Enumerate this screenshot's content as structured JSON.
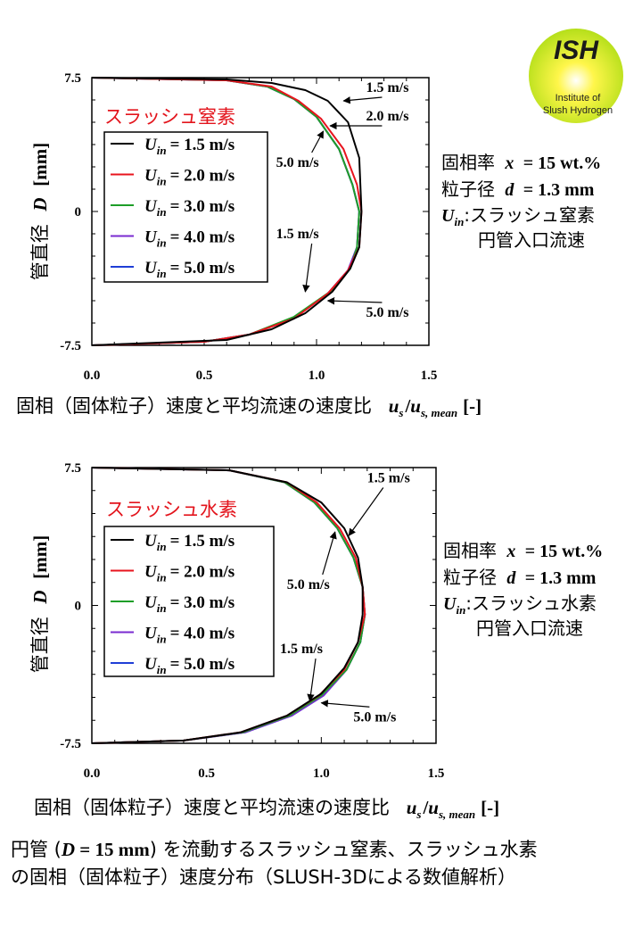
{
  "logo": {
    "title": "ISH",
    "subtitle_line1": "Institute of",
    "subtitle_line2": "Slush Hydrogen",
    "colors": {
      "outer": "#b8e21c",
      "inner": "#fff23a",
      "rim": "#d7e85a"
    }
  },
  "colors": {
    "series_1": "#000000",
    "series_2": "#e8141e",
    "series_3": "#1e9e28",
    "series_4": "#7a2bd0",
    "series_5": "#1f3ed6",
    "legend_title": "#e3141c"
  },
  "chart_data": [
    {
      "type": "line",
      "legend_title": "スラッシュ窒素",
      "xlim": [
        0.0,
        1.5
      ],
      "ylim": [
        -7.5,
        7.5
      ],
      "x_ticks": [
        "0.0",
        "0.5",
        "1.0",
        "1.5"
      ],
      "y_ticks": [
        "7.5",
        "0",
        "-7.5"
      ],
      "ylabel_jp": "管直径",
      "ylabel_sym": "D",
      "ylabel_unit": "[mm]",
      "xlabel_jp": "固相（固体粒子）速度と平均流速の速度比",
      "xlabel_sym_u": "u",
      "xlabel_sym_s": "s",
      "xlabel_slash": "/",
      "xlabel_sym_sub2": "s, mean",
      "xlabel_unit": "[-]",
      "legend_var": "U",
      "legend_sub": "in",
      "series": [
        {
          "name": "1.5 m/s",
          "label": "= 1.5 m/s",
          "points": [
            [
              0.0,
              7.5
            ],
            [
              0.6,
              7.4
            ],
            [
              0.8,
              7.2
            ],
            [
              0.95,
              6.8
            ],
            [
              1.05,
              6.2
            ],
            [
              1.14,
              5.0
            ],
            [
              1.19,
              3.0
            ],
            [
              1.2,
              0.0
            ],
            [
              1.19,
              -2.0
            ],
            [
              1.15,
              -3.2
            ],
            [
              1.07,
              -4.5
            ],
            [
              0.95,
              -5.7
            ],
            [
              0.8,
              -6.6
            ],
            [
              0.6,
              -7.2
            ],
            [
              0.0,
              -7.5
            ]
          ]
        },
        {
          "name": "2.0 m/s",
          "label": "= 2.0 m/s",
          "points": [
            [
              0.0,
              7.5
            ],
            [
              0.6,
              7.35
            ],
            [
              0.8,
              7.0
            ],
            [
              0.92,
              6.2
            ],
            [
              1.02,
              5.2
            ],
            [
              1.12,
              3.5
            ],
            [
              1.18,
              1.5
            ],
            [
              1.2,
              0.0
            ],
            [
              1.19,
              -2.0
            ],
            [
              1.14,
              -3.3
            ],
            [
              1.05,
              -4.6
            ],
            [
              0.9,
              -6.0
            ],
            [
              0.7,
              -6.9
            ],
            [
              0.5,
              -7.3
            ],
            [
              0.0,
              -7.5
            ]
          ]
        },
        {
          "name": "3.0 m/s",
          "label": "= 3.0 m/s",
          "points": [
            [
              0.0,
              7.5
            ],
            [
              0.6,
              7.35
            ],
            [
              0.78,
              7.0
            ],
            [
              0.9,
              6.3
            ],
            [
              1.0,
              5.3
            ],
            [
              1.1,
              3.5
            ],
            [
              1.16,
              1.5
            ],
            [
              1.19,
              0.0
            ],
            [
              1.18,
              -2.0
            ],
            [
              1.15,
              -3.2
            ],
            [
              1.06,
              -4.5
            ],
            [
              0.9,
              -5.9
            ],
            [
              0.7,
              -6.9
            ],
            [
              0.5,
              -7.3
            ],
            [
              0.0,
              -7.5
            ]
          ]
        },
        {
          "name": "4.0 m/s",
          "label": "= 4.0 m/s",
          "points": [
            [
              0.0,
              7.5
            ],
            [
              0.6,
              7.35
            ],
            [
              0.78,
              7.0
            ],
            [
              0.9,
              6.3
            ],
            [
              1.0,
              5.3
            ],
            [
              1.1,
              3.5
            ],
            [
              1.16,
              1.5
            ],
            [
              1.19,
              0.0
            ],
            [
              1.18,
              -2.0
            ],
            [
              1.14,
              -3.3
            ],
            [
              1.05,
              -4.6
            ],
            [
              0.9,
              -5.95
            ],
            [
              0.7,
              -6.9
            ],
            [
              0.5,
              -7.3
            ],
            [
              0.0,
              -7.5
            ]
          ]
        },
        {
          "name": "5.0 m/s",
          "label": "= 5.0 m/s",
          "points": [
            [
              0.0,
              7.5
            ],
            [
              0.6,
              7.35
            ],
            [
              0.78,
              7.0
            ],
            [
              0.9,
              6.3
            ],
            [
              1.0,
              5.3
            ],
            [
              1.1,
              3.5
            ],
            [
              1.16,
              1.5
            ],
            [
              1.19,
              0.0
            ],
            [
              1.18,
              -2.0
            ],
            [
              1.14,
              -3.3
            ],
            [
              1.05,
              -4.6
            ],
            [
              0.9,
              -5.95
            ],
            [
              0.7,
              -6.9
            ],
            [
              0.5,
              -7.3
            ],
            [
              0.0,
              -7.5
            ]
          ]
        }
      ],
      "annotations": [
        {
          "text": "1.5 m/s",
          "at": [
            1.12,
            6.2
          ],
          "label_pos": [
            1.22,
            6.7
          ]
        },
        {
          "text": "2.0 m/s",
          "at": [
            1.06,
            4.8
          ],
          "label_pos": [
            1.22,
            5.1
          ]
        },
        {
          "text": "5.0 m/s",
          "at": [
            1.03,
            4.5
          ],
          "label_pos": [
            0.82,
            2.5
          ]
        },
        {
          "text": "1.5 m/s",
          "at": [
            0.95,
            -4.5
          ],
          "label_pos": [
            0.82,
            -1.5
          ]
        },
        {
          "text": "5.0 m/s",
          "at": [
            1.05,
            -5.0
          ],
          "label_pos": [
            1.22,
            -5.9
          ]
        }
      ],
      "side_note": {
        "line1_jp": "固相率",
        "line1_sym": "x",
        "line1_val": "= 15 wt.%",
        "line2_jp": "粒子径",
        "line2_sym": "d",
        "line2_val": "= 1.3 mm",
        "line3_sym": "U",
        "line3_sub": "in",
        "line3_jp": ":スラッシュ窒素",
        "line4_jp": "円管入口流速"
      }
    },
    {
      "type": "line",
      "legend_title": "スラッシュ水素",
      "xlim": [
        0.0,
        1.5
      ],
      "ylim": [
        -7.5,
        7.5
      ],
      "x_ticks": [
        "0.0",
        "0.5",
        "1.0",
        "1.5"
      ],
      "y_ticks": [
        "7.5",
        "0",
        "-7.5"
      ],
      "ylabel_jp": "管直径",
      "ylabel_sym": "D",
      "ylabel_unit": "[mm]",
      "xlabel_jp": "固相（固体粒子）速度と平均流速の速度比",
      "xlabel_sym_u": "u",
      "xlabel_sym_s": "s",
      "xlabel_slash": "/",
      "xlabel_sym_sub2": "s, mean",
      "xlabel_unit": "[-]",
      "legend_var": "U",
      "legend_sub": "in",
      "series": [
        {
          "name": "1.5 m/s",
          "label": "= 1.5 m/s",
          "points": [
            [
              0.0,
              7.5
            ],
            [
              0.6,
              7.35
            ],
            [
              0.85,
              6.7
            ],
            [
              1.0,
              5.6
            ],
            [
              1.1,
              4.2
            ],
            [
              1.16,
              2.6
            ],
            [
              1.18,
              1.0
            ],
            [
              1.18,
              -0.5
            ],
            [
              1.16,
              -2.0
            ],
            [
              1.1,
              -3.4
            ],
            [
              1.0,
              -4.8
            ],
            [
              0.85,
              -6.0
            ],
            [
              0.65,
              -6.9
            ],
            [
              0.4,
              -7.35
            ],
            [
              0.0,
              -7.5
            ]
          ]
        },
        {
          "name": "2.0 m/s",
          "label": "= 2.0 m/s",
          "points": [
            [
              0.0,
              7.5
            ],
            [
              0.6,
              7.35
            ],
            [
              0.85,
              6.7
            ],
            [
              0.98,
              5.6
            ],
            [
              1.08,
              4.2
            ],
            [
              1.15,
              2.6
            ],
            [
              1.18,
              1.0
            ],
            [
              1.19,
              -0.5
            ],
            [
              1.16,
              -2.0
            ],
            [
              1.1,
              -3.5
            ],
            [
              0.99,
              -4.9
            ],
            [
              0.85,
              -6.0
            ],
            [
              0.65,
              -6.9
            ],
            [
              0.4,
              -7.35
            ],
            [
              0.0,
              -7.5
            ]
          ]
        },
        {
          "name": "3.0 m/s",
          "label": "= 3.0 m/s",
          "points": [
            [
              0.0,
              7.5
            ],
            [
              0.6,
              7.35
            ],
            [
              0.84,
              6.7
            ],
            [
              0.97,
              5.6
            ],
            [
              1.07,
              4.2
            ],
            [
              1.14,
              2.6
            ],
            [
              1.18,
              1.0
            ],
            [
              1.19,
              -0.5
            ],
            [
              1.17,
              -2.0
            ],
            [
              1.11,
              -3.5
            ],
            [
              1.0,
              -4.9
            ],
            [
              0.86,
              -6.0
            ],
            [
              0.66,
              -6.9
            ],
            [
              0.4,
              -7.35
            ],
            [
              0.0,
              -7.5
            ]
          ]
        },
        {
          "name": "4.0 m/s",
          "label": "= 4.0 m/s",
          "points": [
            [
              0.0,
              7.5
            ],
            [
              0.6,
              7.35
            ],
            [
              0.84,
              6.7
            ],
            [
              0.97,
              5.6
            ],
            [
              1.07,
              4.2
            ],
            [
              1.14,
              2.6
            ],
            [
              1.18,
              1.0
            ],
            [
              1.19,
              -0.5
            ],
            [
              1.17,
              -2.0
            ],
            [
              1.11,
              -3.5
            ],
            [
              1.01,
              -4.9
            ],
            [
              0.87,
              -6.0
            ],
            [
              0.67,
              -6.9
            ],
            [
              0.4,
              -7.35
            ],
            [
              0.0,
              -7.5
            ]
          ]
        },
        {
          "name": "5.0 m/s",
          "label": "= 5.0 m/s",
          "points": [
            [
              0.0,
              7.5
            ],
            [
              0.6,
              7.35
            ],
            [
              0.84,
              6.7
            ],
            [
              0.97,
              5.6
            ],
            [
              1.07,
              4.2
            ],
            [
              1.14,
              2.6
            ],
            [
              1.18,
              1.0
            ],
            [
              1.19,
              -0.5
            ],
            [
              1.17,
              -2.0
            ],
            [
              1.11,
              -3.5
            ],
            [
              1.01,
              -4.9
            ],
            [
              0.87,
              -6.0
            ],
            [
              0.67,
              -6.9
            ],
            [
              0.4,
              -7.35
            ],
            [
              0.0,
              -7.5
            ]
          ]
        }
      ],
      "annotations": [
        {
          "text": "1.5 m/s",
          "at": [
            1.12,
            3.8
          ],
          "label_pos": [
            1.2,
            6.7
          ]
        },
        {
          "text": "5.0 m/s",
          "at": [
            1.06,
            4.0
          ],
          "label_pos": [
            0.85,
            0.9
          ]
        },
        {
          "text": "1.5 m/s",
          "at": [
            0.95,
            -5.2
          ],
          "label_pos": [
            0.82,
            -2.6
          ]
        },
        {
          "text": "5.0 m/s",
          "at": [
            1.0,
            -5.3
          ],
          "label_pos": [
            1.14,
            -6.3
          ]
        }
      ],
      "side_note": {
        "line1_jp": "固相率",
        "line1_sym": "x",
        "line1_val": "= 15 wt.%",
        "line2_jp": "粒子径",
        "line2_sym": "d",
        "line2_val": "= 1.3 mm",
        "line3_sym": "U",
        "line3_sub": "in",
        "line3_jp": ":スラッシュ水素",
        "line4_jp": "円管入口流速"
      }
    }
  ],
  "caption": {
    "part1": "円管 (",
    "sym": "D",
    "part2": " = 15 mm",
    "part3": ") を流動するスラッシュ窒素、スラッシュ水素",
    "line2": "の固相（固体粒子）速度分布（SLUSH-3Dによる数値解析）"
  }
}
